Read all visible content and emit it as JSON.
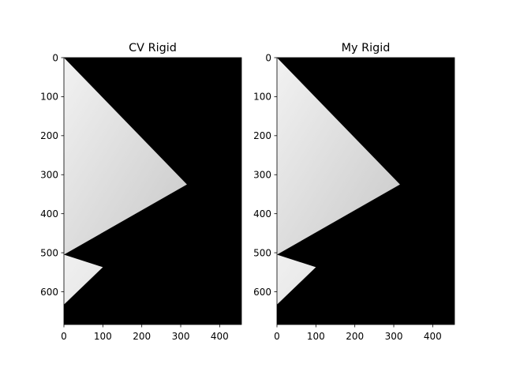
{
  "chart_data": [
    {
      "type": "image",
      "title": "CV Rigid",
      "xlabel": "",
      "ylabel": "",
      "xlim": [
        0,
        456
      ],
      "ylim": [
        684,
        0
      ],
      "xticks": [
        0,
        100,
        200,
        300,
        400
      ],
      "yticks": [
        0,
        100,
        200,
        300,
        400,
        500,
        600
      ],
      "grid": false,
      "colormap": "gray",
      "background_color": "#000000",
      "regions": [
        {
          "name": "bright-triangle",
          "points": [
            [
              0,
              0
            ],
            [
              316,
              325
            ],
            [
              0,
              505
            ]
          ],
          "color_light": "#f2f2f2",
          "color_dark": "#c8c8c8"
        },
        {
          "name": "lower-wedge",
          "points": [
            [
              0,
              505
            ],
            [
              100,
              537
            ],
            [
              0,
              633
            ]
          ],
          "color_light": "#f0f0f0",
          "color_dark": "#e6e6e6"
        }
      ]
    },
    {
      "type": "image",
      "title": "My Rigid",
      "xlabel": "",
      "ylabel": "",
      "xlim": [
        0,
        456
      ],
      "ylim": [
        684,
        0
      ],
      "xticks": [
        0,
        100,
        200,
        300,
        400
      ],
      "yticks": [
        0,
        100,
        200,
        300,
        400,
        500,
        600
      ],
      "grid": false,
      "colormap": "gray",
      "background_color": "#000000",
      "regions": [
        {
          "name": "bright-triangle",
          "points": [
            [
              0,
              0
            ],
            [
              316,
              325
            ],
            [
              0,
              505
            ]
          ],
          "color_light": "#f2f2f2",
          "color_dark": "#c8c8c8"
        },
        {
          "name": "lower-wedge",
          "points": [
            [
              0,
              505
            ],
            [
              100,
              537
            ],
            [
              0,
              633
            ]
          ],
          "color_light": "#f0f0f0",
          "color_dark": "#e6e6e6"
        }
      ]
    }
  ]
}
